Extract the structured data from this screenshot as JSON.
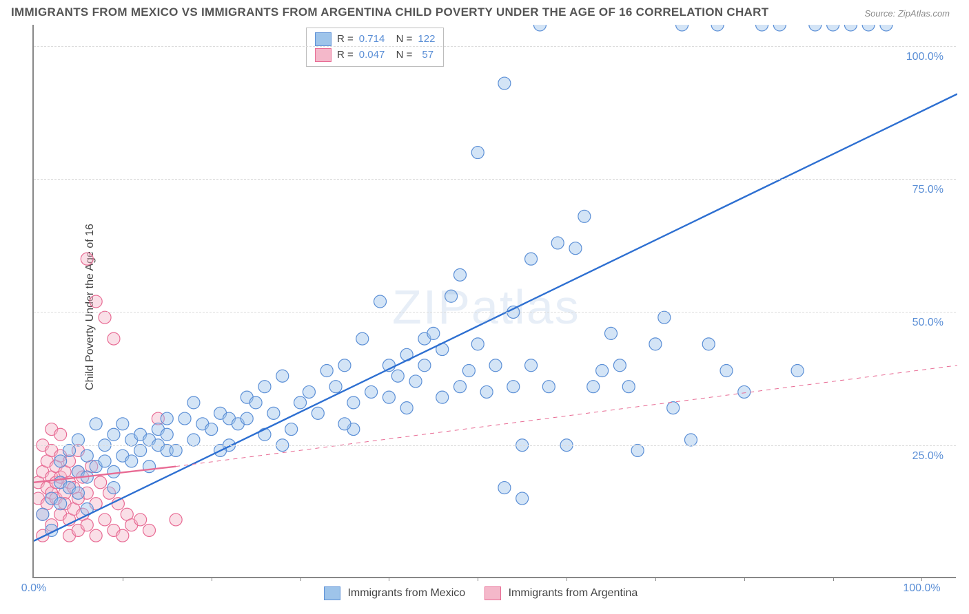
{
  "title": "IMMIGRANTS FROM MEXICO VS IMMIGRANTS FROM ARGENTINA CHILD POVERTY UNDER THE AGE OF 16 CORRELATION CHART",
  "source": "Source: ZipAtlas.com",
  "ylabel": "Child Poverty Under the Age of 16",
  "watermark": "ZIPatlas",
  "chart": {
    "type": "scatter",
    "background_color": "#ffffff",
    "grid_color": "#dcdcdc",
    "axis_color": "#888888",
    "tick_label_color": "#5b8fd6",
    "title_color": "#555555",
    "title_fontsize": 17,
    "label_fontsize": 16,
    "tick_fontsize": 16,
    "xlim": [
      0,
      104
    ],
    "ylim": [
      0,
      104
    ],
    "x_ticks": [
      0,
      100
    ],
    "x_tick_labels": [
      "0.0%",
      "100.0%"
    ],
    "x_minor_ticks_step": 10,
    "y_ticks": [
      25,
      50,
      75,
      100
    ],
    "y_tick_labels": [
      "25.0%",
      "50.0%",
      "75.0%",
      "100.0%"
    ],
    "marker_radius": 9,
    "marker_opacity": 0.45,
    "trend_line_width_solid": 2.4,
    "trend_line_width_dashed": 1,
    "series": [
      {
        "name": "Immigrants from Mexico",
        "fill_color": "#9ec4ea",
        "stroke_color": "#5b8fd6",
        "trend_color": "#2d6fd1",
        "trend_solid": {
          "x1": 0,
          "y1": 7,
          "x2": 104,
          "y2": 91
        },
        "trend_dash": null,
        "R": "0.714",
        "N": "122",
        "points": [
          [
            1,
            12
          ],
          [
            2,
            9
          ],
          [
            2,
            15
          ],
          [
            3,
            18
          ],
          [
            3,
            14
          ],
          [
            3,
            22
          ],
          [
            4,
            17
          ],
          [
            4,
            24
          ],
          [
            5,
            20
          ],
          [
            5,
            16
          ],
          [
            5,
            26
          ],
          [
            6,
            19
          ],
          [
            6,
            23
          ],
          [
            7,
            29
          ],
          [
            7,
            21
          ],
          [
            8,
            22
          ],
          [
            8,
            25
          ],
          [
            9,
            20
          ],
          [
            9,
            27
          ],
          [
            10,
            23
          ],
          [
            10,
            29
          ],
          [
            11,
            26
          ],
          [
            11,
            22
          ],
          [
            12,
            24
          ],
          [
            12,
            27
          ],
          [
            13,
            26
          ],
          [
            13,
            21
          ],
          [
            14,
            28
          ],
          [
            14,
            25
          ],
          [
            15,
            27
          ],
          [
            15,
            24
          ],
          [
            16,
            24
          ],
          [
            17,
            30
          ],
          [
            18,
            26
          ],
          [
            18,
            33
          ],
          [
            19,
            29
          ],
          [
            20,
            28
          ],
          [
            21,
            31
          ],
          [
            22,
            30
          ],
          [
            22,
            25
          ],
          [
            23,
            29
          ],
          [
            24,
            30
          ],
          [
            24,
            34
          ],
          [
            25,
            33
          ],
          [
            26,
            27
          ],
          [
            26,
            36
          ],
          [
            27,
            31
          ],
          [
            28,
            38
          ],
          [
            29,
            28
          ],
          [
            30,
            33
          ],
          [
            31,
            35
          ],
          [
            32,
            31
          ],
          [
            33,
            39
          ],
          [
            34,
            36
          ],
          [
            35,
            40
          ],
          [
            36,
            28
          ],
          [
            36,
            33
          ],
          [
            37,
            45
          ],
          [
            38,
            35
          ],
          [
            39,
            52
          ],
          [
            40,
            34
          ],
          [
            40,
            40
          ],
          [
            41,
            38
          ],
          [
            42,
            42
          ],
          [
            42,
            32
          ],
          [
            43,
            37
          ],
          [
            44,
            45
          ],
          [
            44,
            40
          ],
          [
            45,
            46
          ],
          [
            46,
            34
          ],
          [
            46,
            43
          ],
          [
            47,
            53
          ],
          [
            48,
            36
          ],
          [
            48,
            57
          ],
          [
            49,
            39
          ],
          [
            50,
            80
          ],
          [
            50,
            44
          ],
          [
            51,
            35
          ],
          [
            52,
            40
          ],
          [
            53,
            93
          ],
          [
            54,
            36
          ],
          [
            54,
            50
          ],
          [
            55,
            25
          ],
          [
            55,
            15
          ],
          [
            56,
            60
          ],
          [
            56,
            40
          ],
          [
            57,
            104
          ],
          [
            58,
            36
          ],
          [
            59,
            63
          ],
          [
            60,
            25
          ],
          [
            61,
            62
          ],
          [
            62,
            68
          ],
          [
            63,
            36
          ],
          [
            64,
            39
          ],
          [
            65,
            46
          ],
          [
            66,
            40
          ],
          [
            67,
            36
          ],
          [
            68,
            24
          ],
          [
            70,
            44
          ],
          [
            71,
            49
          ],
          [
            72,
            32
          ],
          [
            73,
            104
          ],
          [
            74,
            26
          ],
          [
            76,
            44
          ],
          [
            77,
            104
          ],
          [
            78,
            39
          ],
          [
            80,
            35
          ],
          [
            82,
            104
          ],
          [
            84,
            104
          ],
          [
            86,
            39
          ],
          [
            88,
            104
          ],
          [
            90,
            104
          ],
          [
            92,
            104
          ],
          [
            94,
            104
          ],
          [
            96,
            104
          ],
          [
            53,
            17
          ],
          [
            35,
            29
          ],
          [
            28,
            25
          ],
          [
            15,
            30
          ],
          [
            21,
            24
          ],
          [
            9,
            17
          ],
          [
            6,
            13
          ]
        ]
      },
      {
        "name": "Immigrants from Argentina",
        "fill_color": "#f4b8ca",
        "stroke_color": "#e86b94",
        "trend_color": "#e86b94",
        "trend_solid": {
          "x1": 0,
          "y1": 18,
          "x2": 16,
          "y2": 21
        },
        "trend_dash": {
          "x1": 16,
          "y1": 21,
          "x2": 104,
          "y2": 40
        },
        "R": "0.047",
        "N": "57",
        "points": [
          [
            0.5,
            15
          ],
          [
            0.5,
            18
          ],
          [
            1,
            20
          ],
          [
            1,
            12
          ],
          [
            1,
            8
          ],
          [
            1,
            25
          ],
          [
            1.5,
            17
          ],
          [
            1.5,
            22
          ],
          [
            1.5,
            14
          ],
          [
            2,
            19
          ],
          [
            2,
            24
          ],
          [
            2,
            16
          ],
          [
            2,
            10
          ],
          [
            2,
            28
          ],
          [
            2.5,
            21
          ],
          [
            2.5,
            15
          ],
          [
            2.5,
            18
          ],
          [
            3,
            23
          ],
          [
            3,
            12
          ],
          [
            3,
            19
          ],
          [
            3,
            27
          ],
          [
            3.5,
            16
          ],
          [
            3.5,
            14
          ],
          [
            3.5,
            20
          ],
          [
            4,
            8
          ],
          [
            4,
            11
          ],
          [
            4,
            22
          ],
          [
            4,
            18
          ],
          [
            4.5,
            13
          ],
          [
            4.5,
            17
          ],
          [
            5,
            20
          ],
          [
            5,
            9
          ],
          [
            5,
            15
          ],
          [
            5,
            24
          ],
          [
            5.5,
            12
          ],
          [
            5.5,
            19
          ],
          [
            6,
            60
          ],
          [
            6,
            16
          ],
          [
            6,
            10
          ],
          [
            6.5,
            21
          ],
          [
            7,
            8
          ],
          [
            7,
            52
          ],
          [
            7,
            14
          ],
          [
            7.5,
            18
          ],
          [
            8,
            49
          ],
          [
            8,
            11
          ],
          [
            8.5,
            16
          ],
          [
            9,
            45
          ],
          [
            9,
            9
          ],
          [
            9.5,
            14
          ],
          [
            10,
            8
          ],
          [
            10.5,
            12
          ],
          [
            11,
            10
          ],
          [
            12,
            11
          ],
          [
            13,
            9
          ],
          [
            14,
            30
          ],
          [
            16,
            11
          ]
        ]
      }
    ]
  },
  "legend_bottom": {
    "items": [
      {
        "label": "Immigrants from Mexico",
        "fill": "#9ec4ea",
        "stroke": "#5b8fd6"
      },
      {
        "label": "Immigrants from Argentina",
        "fill": "#f4b8ca",
        "stroke": "#e86b94"
      }
    ]
  }
}
